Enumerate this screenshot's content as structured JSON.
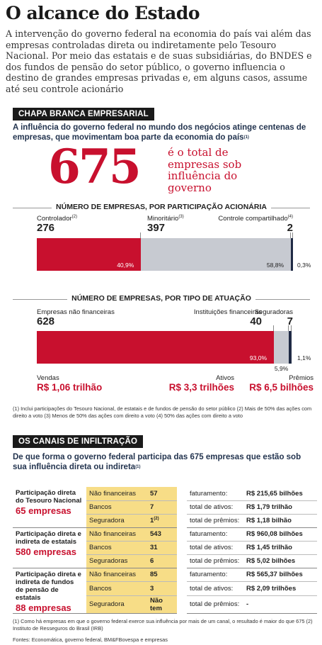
{
  "header": {
    "title": "O alcance do Estado",
    "intro": "A intervenção do governo federal na economia do país vai além das empresas controladas direta ou indiretamente pelo Tesouro Nacional. Por meio das estatais e de suas subsidiárias, do BNDES e dos fundos de pensão do setor público, o governo influencia o destino de grandes empresas privadas e, em alguns casos, assume até seu controle acionário"
  },
  "section1": {
    "header": "CHAPA BRANCA EMPRESARIAL",
    "lead": "A influência do governo federal no mundo dos negócios atinge centenas de empresas, que movimentam boa parte da economia do país",
    "lead_note": "(1)",
    "big_number": "675",
    "big_text": "é o total de empresas sob influência do governo"
  },
  "chart_data": [
    {
      "type": "bar",
      "title": "NÚMERO DE EMPRESAS, POR PARTICIPAÇÃO ACIONÁRIA",
      "orientation": "stacked-horizontal",
      "categories": [
        "Controlador",
        "Minoritário",
        "Controle compartilhado"
      ],
      "category_notes": [
        "(2)",
        "(3)",
        "(4)"
      ],
      "values": [
        276,
        397,
        2
      ],
      "value_labels": [
        "276",
        "397",
        "2"
      ],
      "percent_labels": [
        "40,9%",
        "58,8%",
        "0,3%"
      ],
      "percentages": [
        40.9,
        58.8,
        0.3
      ],
      "colors": [
        "#c8102e",
        "#c7cad1",
        "#1f2a44"
      ]
    },
    {
      "type": "bar",
      "title": "NÚMERO DE EMPRESAS, POR TIPO DE ATUAÇÃO",
      "orientation": "stacked-horizontal",
      "categories": [
        "Empresas não financeiras",
        "Instituições financeiras",
        "Seguradoras"
      ],
      "values": [
        628,
        40,
        7
      ],
      "value_labels": [
        "628",
        "40",
        "7"
      ],
      "percent_labels": [
        "93,0%",
        "5,9%",
        "1,1%"
      ],
      "percentages": [
        93.0,
        5.9,
        1.1
      ],
      "colors": [
        "#c8102e",
        "#c7cad1",
        "#1f2a44"
      ],
      "amount_labels": [
        "Vendas",
        "Ativos",
        "Prêmios"
      ],
      "amounts": [
        "R$ 1,06 trilhão",
        "R$ 3,3 trilhões",
        "R$ 6,5 bilhões"
      ]
    }
  ],
  "notes1": "(1) Inclui participações do Tesouro Nacional, de estatais e de fundos de pensão do setor público (2) Mais de 50% das ações com direito a voto (3) Menos de 50% das ações com direito a voto (4) 50% das ações com direito a voto",
  "section2": {
    "header": "OS CANAIS DE INFILTRAÇÃO",
    "lead": "De que forma o governo federal participa das 675 empresas que estão sob sua influência direta ou indireta",
    "lead_note": "(1)",
    "groups": [
      {
        "name": "Participação direta do Tesouro Nacional",
        "count": "65 empresas",
        "rows": [
          {
            "segment": "Não financeiras",
            "count": "57",
            "count_note": "",
            "metric": "faturamento:",
            "value": "R$ 215,65 bilhões"
          },
          {
            "segment": "Bancos",
            "count": "7",
            "count_note": "",
            "metric": "total de ativos:",
            "value": "R$ 1,79 trilhão"
          },
          {
            "segment": "Seguradora",
            "count": "1",
            "count_note": "(2)",
            "metric": "total de prêmios:",
            "value": "R$ 1,18 bilhão"
          }
        ]
      },
      {
        "name": "Participação direta e indireta de estatais",
        "count": "580 empresas",
        "rows": [
          {
            "segment": "Não financeiras",
            "count": "543",
            "count_note": "",
            "metric": "faturamento:",
            "value": "R$ 960,08 bilhões"
          },
          {
            "segment": "Bancos",
            "count": "31",
            "count_note": "",
            "metric": "total de ativos:",
            "value": "R$ 1,45 trilhão"
          },
          {
            "segment": "Seguradoras",
            "count": "6",
            "count_note": "",
            "metric": "total de prêmios:",
            "value": "R$ 5,02 bilhões"
          }
        ]
      },
      {
        "name": "Participação direta e indireta de fundos de pensão de estatais",
        "count": "88 empresas",
        "rows": [
          {
            "segment": "Não financeiras",
            "count": "85",
            "count_note": "",
            "metric": "faturamento:",
            "value": "R$ 565,37 bilhões"
          },
          {
            "segment": "Bancos",
            "count": "3",
            "count_note": "",
            "metric": "total de ativos:",
            "value": "R$ 2,09 trilhões"
          },
          {
            "segment": "Seguradora",
            "count": "Não tem",
            "count_note": "",
            "metric": "total de prêmios:",
            "value": "-"
          }
        ]
      }
    ]
  },
  "notes2": "(1) Como há empresas em que o governo federal exerce sua influência por mais de um canal, o resultado é maior do que 675 (2) Instituto de Resseguros do Brasil (IRB)",
  "sources": "Fontes: Economática, governo federal, BM&FBovespa e empresas"
}
